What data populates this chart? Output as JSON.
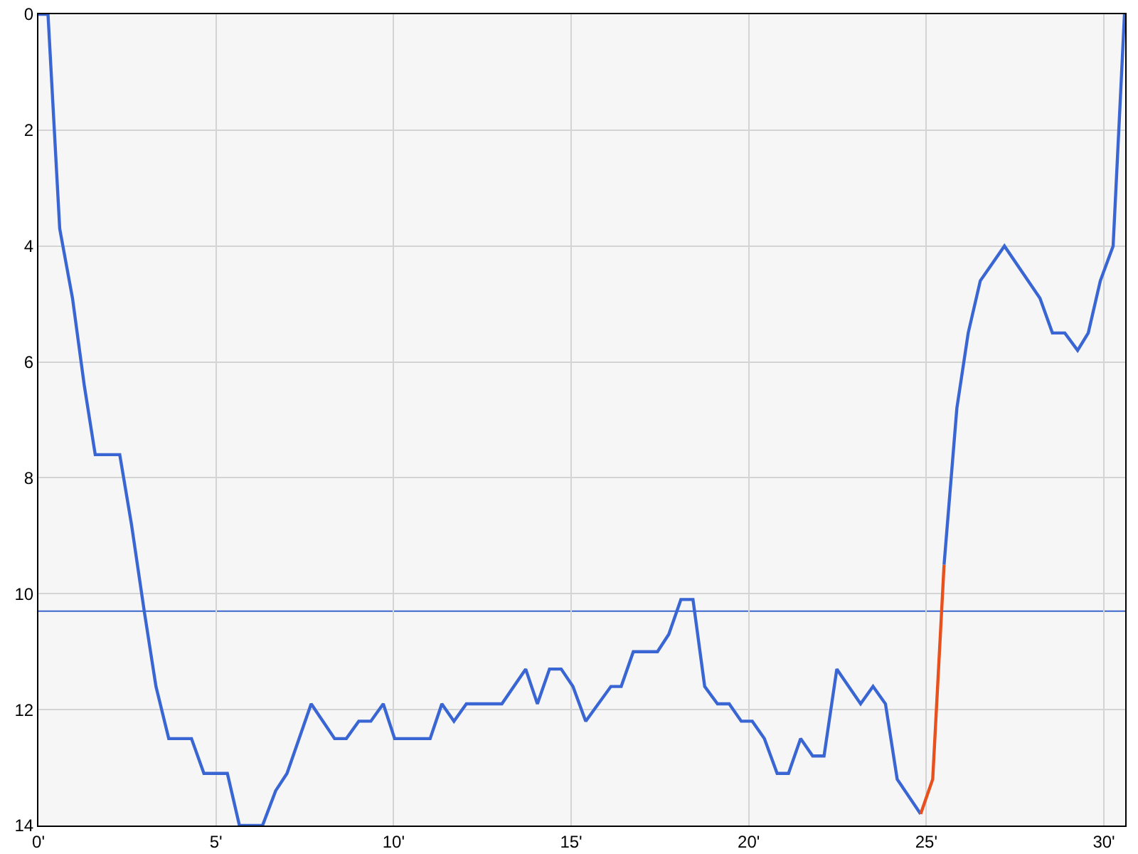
{
  "chart_data": {
    "type": "line",
    "xlim": [
      0,
      30.6
    ],
    "ylim": [
      14,
      0
    ],
    "xticks": [
      {
        "value": 0,
        "label": "0'"
      },
      {
        "value": 5,
        "label": "5'"
      },
      {
        "value": 10,
        "label": "10'"
      },
      {
        "value": 15,
        "label": "15'"
      },
      {
        "value": 20,
        "label": "20'"
      },
      {
        "value": 25,
        "label": "25'"
      },
      {
        "value": 30,
        "label": "30'"
      }
    ],
    "yticks": [
      0,
      2,
      4,
      6,
      8,
      10,
      12,
      14
    ],
    "grid": true,
    "marker": "none",
    "line_style": "solid",
    "ref_lines": [
      {
        "axis": "y",
        "value": 10.3,
        "color": "#3a66cc"
      }
    ],
    "series": [
      {
        "color": "#3a66d4",
        "x": [
          0,
          0.27,
          0.6,
          0.96,
          1.29,
          1.6,
          2.29,
          2.62,
          2.98,
          3.31,
          3.67,
          4.31,
          4.66,
          5.32,
          5.66,
          6.31,
          6.68,
          7.0,
          7.68,
          8.34,
          8.67,
          9.02,
          9.36,
          9.71,
          10.03,
          11.03,
          11.36,
          11.7,
          12.05,
          13.05,
          13.72,
          14.05,
          14.39,
          14.72,
          15.05,
          15.41,
          16.12,
          16.41,
          16.75,
          17.43,
          17.75,
          18.09,
          18.43,
          18.76,
          19.12,
          19.45,
          19.79,
          20.1,
          20.44,
          20.8,
          21.12,
          21.46,
          21.8,
          22.12,
          22.48,
          23.15,
          23.5,
          23.85,
          24.18,
          24.84,
          25.18,
          25.5,
          25.86,
          26.18,
          26.52,
          27.2,
          28.2,
          28.55,
          28.9,
          29.26,
          29.56,
          29.9,
          30.26,
          30.58
        ],
        "values": [
          0,
          0,
          3.7,
          4.9,
          6.4,
          7.6,
          7.6,
          8.8,
          10.3,
          11.6,
          12.5,
          12.5,
          13.1,
          13.1,
          14,
          14,
          13.4,
          13.1,
          11.9,
          12.5,
          12.5,
          12.2,
          12.2,
          11.9,
          12.5,
          12.5,
          11.9,
          12.2,
          11.9,
          11.9,
          11.3,
          11.9,
          11.3,
          11.3,
          11.6,
          12.2,
          11.6,
          11.6,
          11.0,
          11.0,
          10.7,
          10.1,
          10.1,
          11.6,
          11.9,
          11.9,
          12.2,
          12.2,
          12.5,
          13.1,
          13.1,
          12.5,
          12.8,
          12.8,
          11.3,
          11.9,
          11.6,
          11.9,
          13.2,
          13.8,
          null,
          9.5,
          6.8,
          5.5,
          4.6,
          4.0,
          4.9,
          5.5,
          5.5,
          5.8,
          5.5,
          4.6,
          4.0,
          0
        ]
      },
      {
        "color": "#e8501e",
        "x": [
          24.84,
          25.18,
          25.5
        ],
        "values": [
          13.8,
          13.2,
          9.5
        ]
      }
    ]
  }
}
